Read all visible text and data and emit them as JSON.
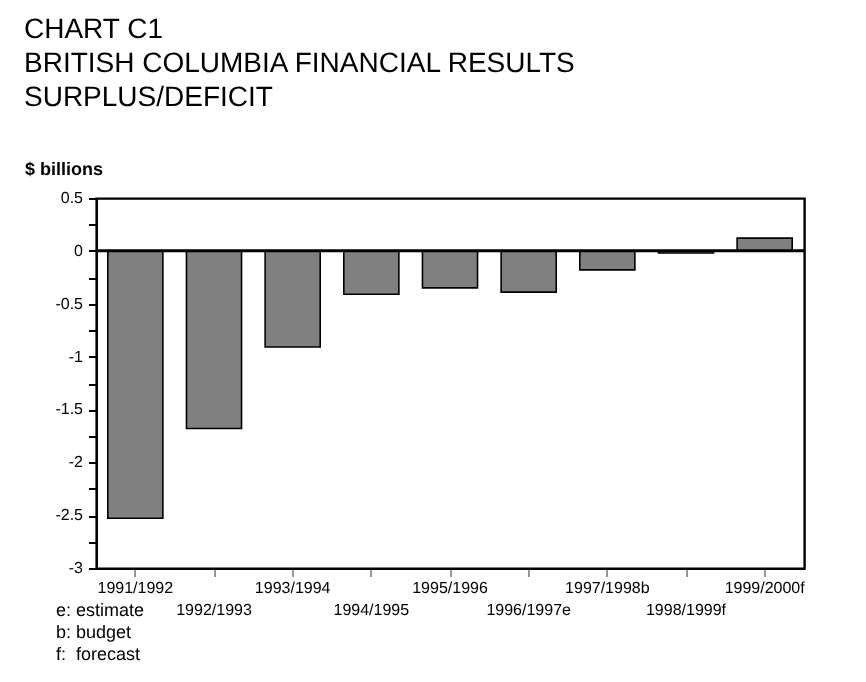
{
  "chart_data": {
    "type": "bar",
    "title": "CHART C1\nBRITISH COLUMBIA FINANCIAL RESULTS\nSURPLUS/DEFICIT",
    "ylabel": "$ billions",
    "categories": [
      "1991/1992",
      "1992/1993",
      "1993/1994",
      "1994/1995",
      "1995/1996",
      "1996/1997e",
      "1997/1998b",
      "1998/1999f",
      "1999/2000f"
    ],
    "values": [
      -2.53,
      -1.68,
      -0.91,
      -0.41,
      -0.35,
      -0.39,
      -0.18,
      -0.02,
      0.12
    ],
    "color": "#808080",
    "ylim": [
      -3,
      0.5
    ],
    "yticks": [
      -3,
      {
        "value": -2.75,
        "label": null
      },
      -2.5,
      {
        "value": -2.25,
        "label": null
      },
      -2,
      {
        "value": -1.75,
        "label": null
      },
      -1.5,
      {
        "value": -1.25,
        "label": null
      },
      -1,
      {
        "value": -0.75,
        "label": null
      },
      -0.5,
      {
        "value": -0.25,
        "label": null
      },
      0,
      {
        "value": 0.25,
        "label": null
      },
      0.5
    ],
    "ref_lines": [
      {
        "axis": "y",
        "value": 0,
        "color": "#000000"
      }
    ],
    "annotations": [
      "e: estimate",
      "b: budget",
      "f:  forecast"
    ],
    "grid": false
  }
}
